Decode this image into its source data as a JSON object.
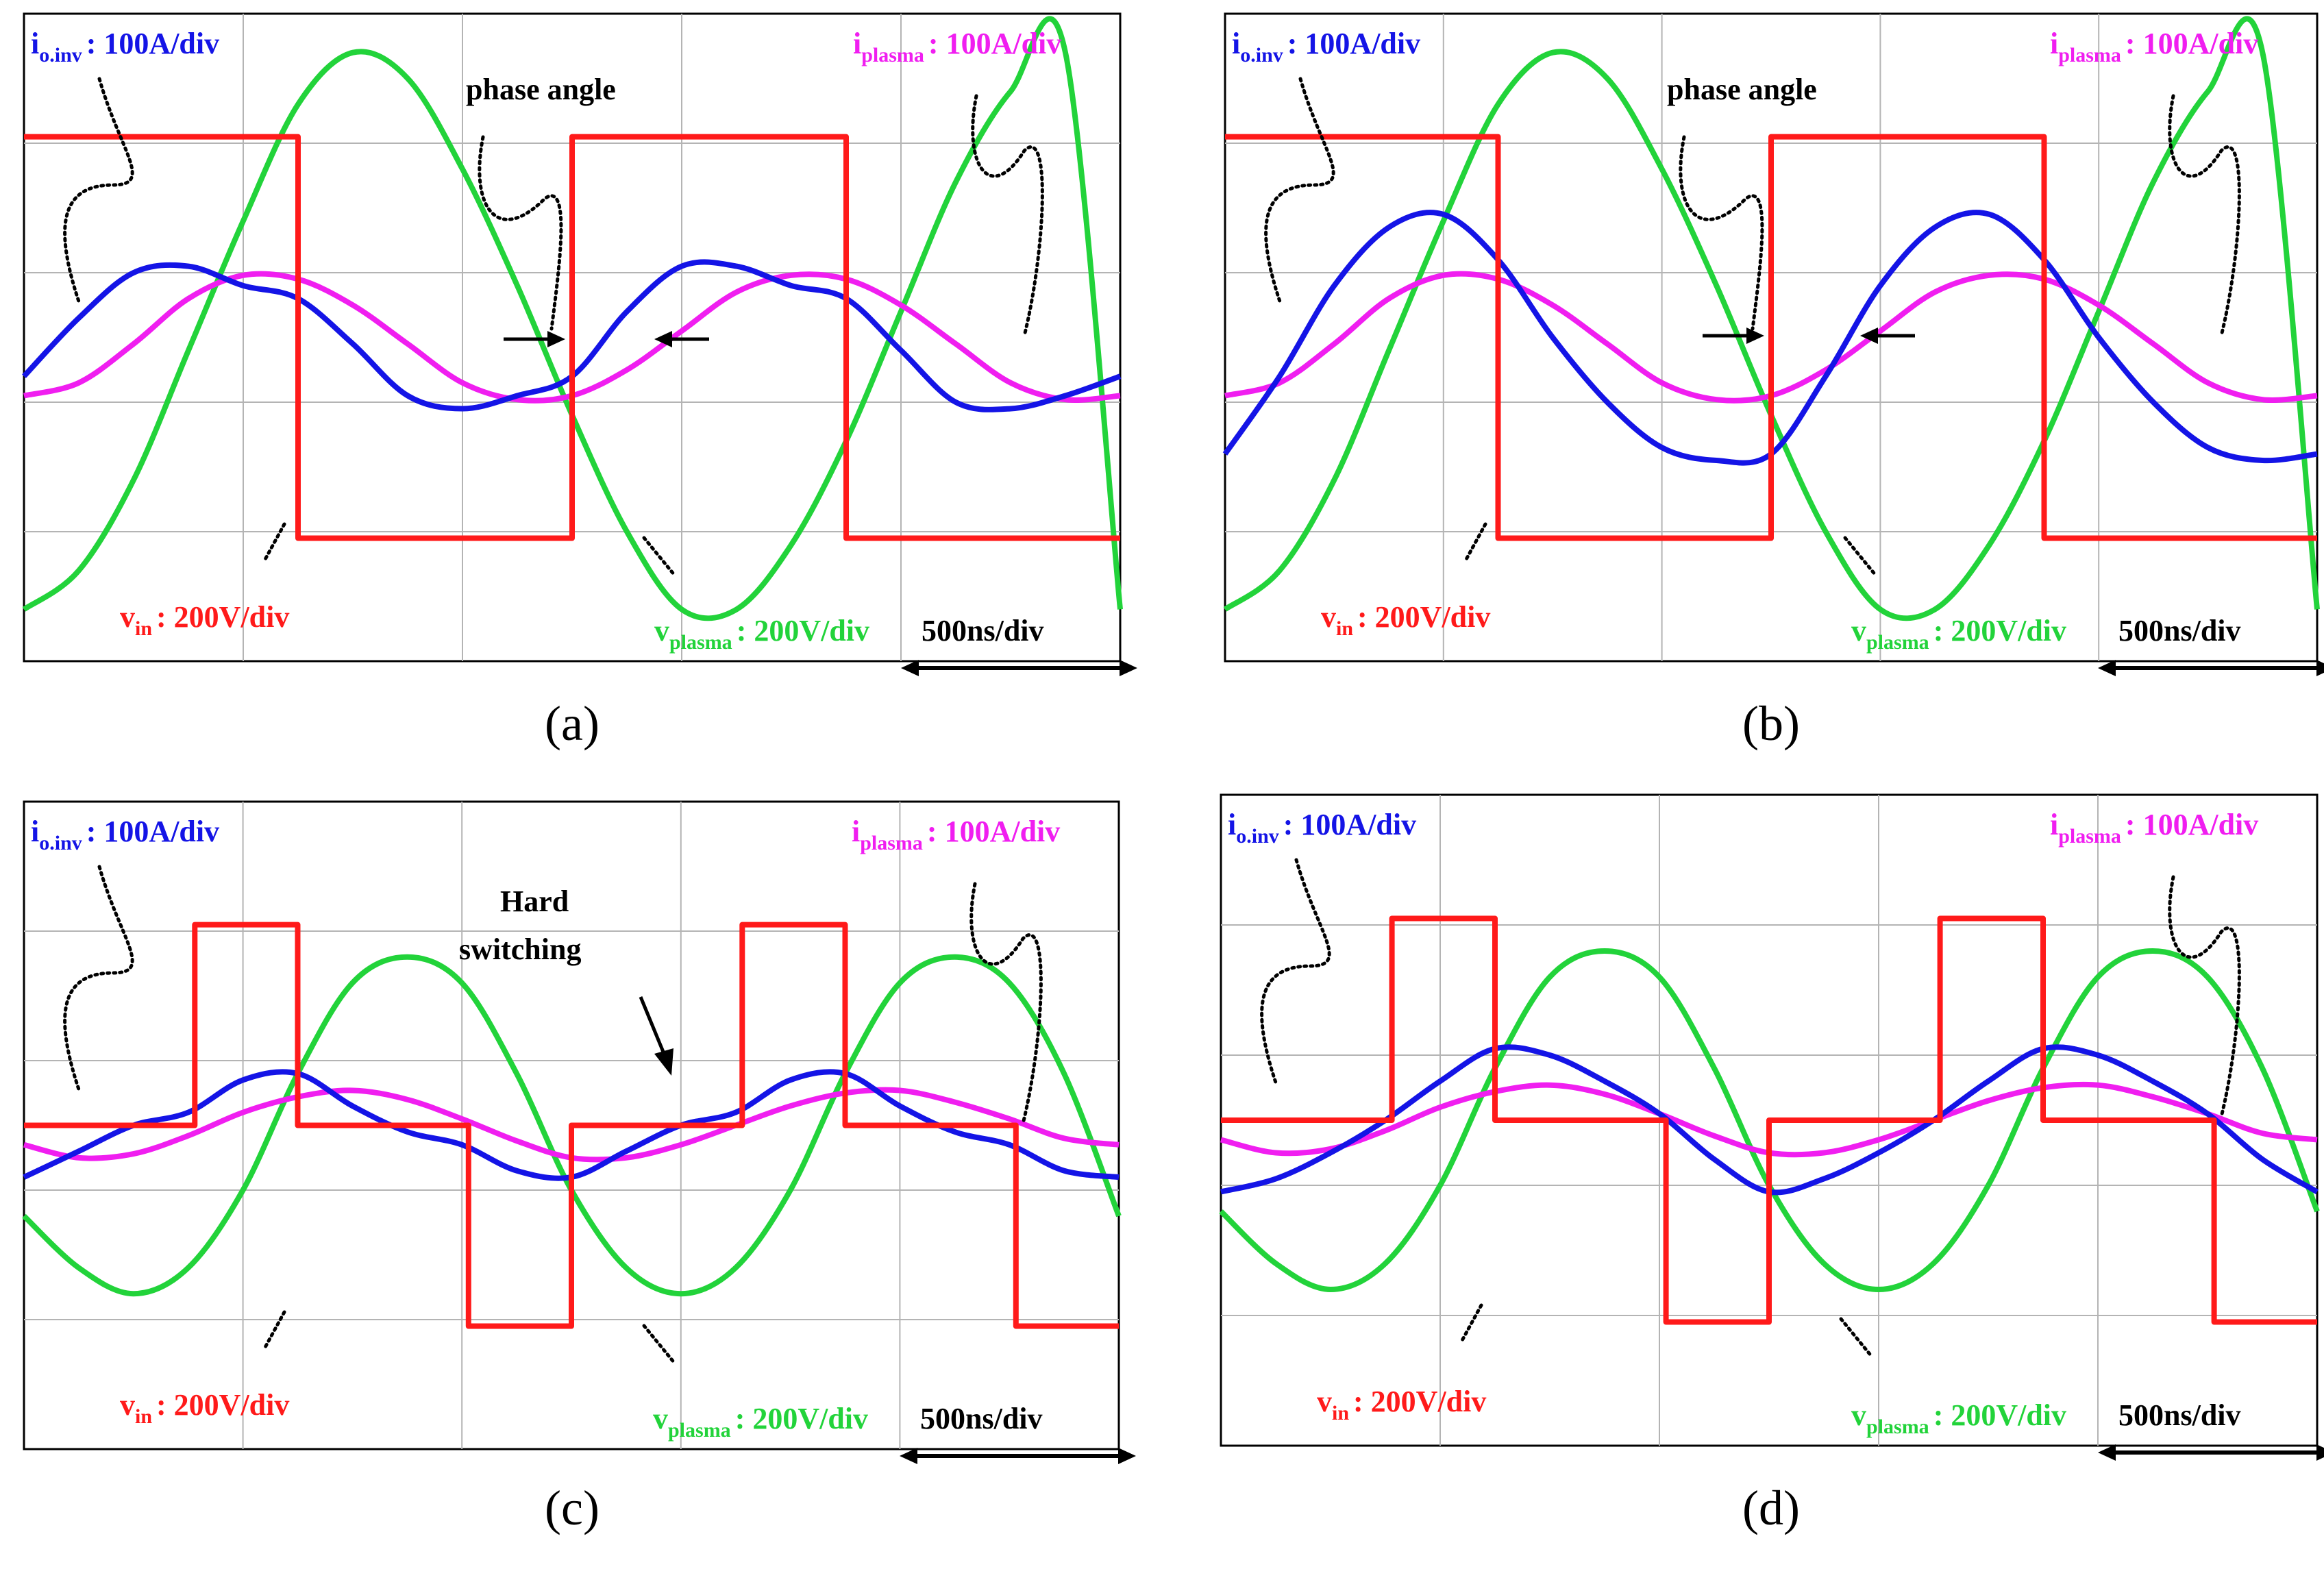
{
  "figure": {
    "description_free": true,
    "panels": [
      {
        "id": "a",
        "caption": "(a)",
        "labels": {
          "io_inv": {
            "main": "i",
            "sub": "o.inv",
            "scale": ": 100A/div"
          },
          "i_plasma": {
            "main": "i",
            "sub": "plasma",
            "scale": ": 100A/div"
          },
          "v_in": {
            "main": "v",
            "sub": "in",
            "scale": ": 200V/div"
          },
          "v_plasma": {
            "main": "v",
            "sub": "plasma",
            "scale": ": 200V/div"
          },
          "time_scale": "500ns/div"
        },
        "annotation": {
          "text1": "phase angle",
          "text2": ""
        }
      },
      {
        "id": "b",
        "caption": "(b)",
        "labels": {
          "io_inv": {
            "main": "i",
            "sub": "o.inv",
            "scale": ": 100A/div"
          },
          "i_plasma": {
            "main": "i",
            "sub": "plasma",
            "scale": ": 100A/div"
          },
          "v_in": {
            "main": "v",
            "sub": "in",
            "scale": ": 200V/div"
          },
          "v_plasma": {
            "main": "v",
            "sub": "plasma",
            "scale": ": 200V/div"
          },
          "time_scale": "500ns/div"
        },
        "annotation": {
          "text1": "phase angle",
          "text2": ""
        }
      },
      {
        "id": "c",
        "caption": "(c)",
        "labels": {
          "io_inv": {
            "main": "i",
            "sub": "o.inv",
            "scale": ": 100A/div"
          },
          "i_plasma": {
            "main": "i",
            "sub": "plasma",
            "scale": ": 100A/div"
          },
          "v_in": {
            "main": "v",
            "sub": "in",
            "scale": ": 200V/div"
          },
          "v_plasma": {
            "main": "v",
            "sub": "plasma",
            "scale": ": 200V/div"
          },
          "time_scale": "500ns/div"
        },
        "annotation": {
          "text1": "Hard",
          "text2": "switching"
        }
      },
      {
        "id": "d",
        "caption": "(d)",
        "labels": {
          "io_inv": {
            "main": "i",
            "sub": "o.inv",
            "scale": ": 100A/div"
          },
          "i_plasma": {
            "main": "i",
            "sub": "plasma",
            "scale": ": 100A/div"
          },
          "v_in": {
            "main": "v",
            "sub": "in",
            "scale": ": 200V/div"
          },
          "v_plasma": {
            "main": "v",
            "sub": "plasma",
            "scale": ": 200V/div"
          },
          "time_scale": "500ns/div"
        },
        "annotation": {
          "text1": "",
          "text2": ""
        }
      }
    ]
  },
  "colors": {
    "v_in": "#ff1a1a",
    "v_plasma": "#22d33a",
    "io_inv": "#1414e6",
    "i_plasma": "#f01ef0",
    "grid": "#b4b4b4",
    "frame": "#000000",
    "label_black": "#000000"
  },
  "chart_data": [
    {
      "type": "line",
      "panel": "a",
      "title": "",
      "xlabel": "time (500ns/div)",
      "ylabel": "",
      "x_divisions": 5,
      "y_divisions": 5,
      "xlim": [
        0,
        5
      ],
      "ylim": [
        -2.5,
        2.5
      ],
      "series": [
        {
          "name": "v_in",
          "unit": "200V/div",
          "x": [
            0.0,
            1.25,
            1.25,
            2.5,
            2.5,
            3.75,
            3.75,
            5.0
          ],
          "y": [
            1.55,
            1.55,
            -1.55,
            -1.55,
            1.55,
            1.55,
            -1.55,
            -1.55
          ]
        },
        {
          "name": "v_plasma",
          "unit": "200V/div",
          "x": [
            0.0,
            0.25,
            0.5,
            0.75,
            1.0,
            1.25,
            1.5,
            1.75,
            2.0,
            2.25,
            2.5,
            2.75,
            3.0,
            3.25,
            3.5,
            3.75,
            4.0,
            4.25,
            4.5,
            4.75,
            5.0
          ],
          "y": [
            -2.1,
            -1.8,
            -1.1,
            -0.1,
            0.9,
            1.8,
            2.2,
            2.0,
            1.3,
            0.4,
            -0.6,
            -1.5,
            -2.1,
            -2.1,
            -1.6,
            -0.8,
            0.2,
            1.2,
            1.9,
            2.2,
            -2.1
          ]
        },
        {
          "name": "io_inv",
          "unit": "100A/div",
          "x": [
            0.0,
            0.25,
            0.5,
            0.75,
            1.0,
            1.25,
            1.5,
            1.75,
            2.0,
            2.25,
            2.5,
            2.75,
            3.0,
            3.25,
            3.5,
            3.75,
            4.0,
            4.25,
            4.5,
            4.75,
            5.0
          ],
          "y": [
            -0.3,
            0.15,
            0.5,
            0.55,
            0.4,
            0.3,
            -0.05,
            -0.45,
            -0.55,
            -0.45,
            -0.3,
            0.2,
            0.55,
            0.55,
            0.4,
            0.3,
            -0.1,
            -0.5,
            -0.55,
            -0.45,
            -0.3
          ]
        },
        {
          "name": "i_plasma",
          "unit": "100A/div",
          "x": [
            0.0,
            0.25,
            0.5,
            0.75,
            1.0,
            1.25,
            1.5,
            1.75,
            2.0,
            2.25,
            2.5,
            2.75,
            3.0,
            3.25,
            3.5,
            3.75,
            4.0,
            4.25,
            4.5,
            4.75,
            5.0
          ],
          "y": [
            -0.45,
            -0.35,
            -0.05,
            0.3,
            0.48,
            0.45,
            0.25,
            -0.05,
            -0.35,
            -0.48,
            -0.45,
            -0.25,
            0.05,
            0.35,
            0.48,
            0.45,
            0.25,
            -0.05,
            -0.35,
            -0.48,
            -0.45
          ]
        }
      ]
    },
    {
      "type": "line",
      "panel": "b",
      "title": "",
      "xlabel": "time (500ns/div)",
      "ylabel": "",
      "x_divisions": 5,
      "y_divisions": 5,
      "xlim": [
        0,
        5
      ],
      "ylim": [
        -2.5,
        2.5
      ],
      "series": [
        {
          "name": "v_in",
          "unit": "200V/div",
          "x": [
            0.0,
            1.25,
            1.25,
            2.5,
            2.5,
            3.75,
            3.75,
            5.0
          ],
          "y": [
            1.55,
            1.55,
            -1.55,
            -1.55,
            1.55,
            1.55,
            -1.55,
            -1.55
          ]
        },
        {
          "name": "v_plasma",
          "unit": "200V/div",
          "x": [
            0.0,
            0.25,
            0.5,
            0.75,
            1.0,
            1.25,
            1.5,
            1.75,
            2.0,
            2.25,
            2.5,
            2.75,
            3.0,
            3.25,
            3.5,
            3.75,
            4.0,
            4.25,
            4.5,
            4.75,
            5.0
          ],
          "y": [
            -2.1,
            -1.8,
            -1.1,
            -0.1,
            0.9,
            1.8,
            2.2,
            2.0,
            1.3,
            0.4,
            -0.6,
            -1.5,
            -2.1,
            -2.1,
            -1.6,
            -0.8,
            0.2,
            1.2,
            1.9,
            2.2,
            -2.1
          ]
        },
        {
          "name": "io_inv",
          "unit": "100A/div",
          "x": [
            0.0,
            0.25,
            0.5,
            0.75,
            1.0,
            1.25,
            1.5,
            1.75,
            2.0,
            2.25,
            2.5,
            2.75,
            3.0,
            3.25,
            3.5,
            3.75,
            4.0,
            4.25,
            4.5,
            4.75,
            5.0
          ],
          "y": [
            -0.9,
            -0.3,
            0.4,
            0.85,
            0.95,
            0.6,
            0.0,
            -0.5,
            -0.85,
            -0.95,
            -0.9,
            -0.3,
            0.4,
            0.85,
            0.95,
            0.6,
            0.0,
            -0.5,
            -0.85,
            -0.95,
            -0.9
          ]
        },
        {
          "name": "i_plasma",
          "unit": "100A/div",
          "x": [
            0.0,
            0.25,
            0.5,
            0.75,
            1.0,
            1.25,
            1.5,
            1.75,
            2.0,
            2.25,
            2.5,
            2.75,
            3.0,
            3.25,
            3.5,
            3.75,
            4.0,
            4.25,
            4.5,
            4.75,
            5.0
          ],
          "y": [
            -0.45,
            -0.35,
            -0.05,
            0.3,
            0.48,
            0.45,
            0.25,
            -0.05,
            -0.35,
            -0.48,
            -0.45,
            -0.25,
            0.05,
            0.35,
            0.48,
            0.45,
            0.25,
            -0.05,
            -0.35,
            -0.48,
            -0.45
          ]
        }
      ]
    },
    {
      "type": "line",
      "panel": "c",
      "title": "",
      "xlabel": "time (500ns/div)",
      "ylabel": "",
      "x_divisions": 5,
      "y_divisions": 5,
      "xlim": [
        0,
        5
      ],
      "ylim": [
        -2.5,
        2.5
      ],
      "series": [
        {
          "name": "v_in",
          "unit": "200V/div",
          "x": [
            0.0,
            0.78,
            0.78,
            1.25,
            1.25,
            2.03,
            2.03,
            2.5,
            2.5,
            3.28,
            3.28,
            3.75,
            3.75,
            4.53,
            4.53,
            5.0
          ],
          "y": [
            0.0,
            0.0,
            1.55,
            1.55,
            0.0,
            0.0,
            -1.55,
            -1.55,
            0.0,
            0.0,
            1.55,
            1.55,
            0.0,
            0.0,
            -1.55,
            -1.55
          ]
        },
        {
          "name": "v_plasma",
          "unit": "200V/div",
          "x": [
            0.0,
            0.25,
            0.5,
            0.75,
            1.0,
            1.25,
            1.5,
            1.75,
            2.0,
            2.25,
            2.5,
            2.75,
            3.0,
            3.25,
            3.5,
            3.75,
            4.0,
            4.25,
            4.5,
            4.75,
            5.0
          ],
          "y": [
            -0.7,
            -1.1,
            -1.3,
            -1.1,
            -0.5,
            0.4,
            1.1,
            1.3,
            1.1,
            0.4,
            -0.5,
            -1.1,
            -1.3,
            -1.1,
            -0.5,
            0.4,
            1.1,
            1.3,
            1.1,
            0.4,
            -0.7
          ]
        },
        {
          "name": "io_inv",
          "unit": "100A/div",
          "x": [
            0.0,
            0.25,
            0.5,
            0.75,
            1.0,
            1.25,
            1.5,
            1.75,
            2.0,
            2.25,
            2.5,
            2.75,
            3.0,
            3.25,
            3.5,
            3.75,
            4.0,
            4.25,
            4.5,
            4.75,
            5.0
          ],
          "y": [
            -0.4,
            -0.2,
            0.0,
            0.1,
            0.35,
            0.4,
            0.15,
            -0.05,
            -0.15,
            -0.35,
            -0.4,
            -0.2,
            0.0,
            0.1,
            0.35,
            0.4,
            0.15,
            -0.05,
            -0.15,
            -0.35,
            -0.4
          ]
        },
        {
          "name": "i_plasma",
          "unit": "100A/div",
          "x": [
            0.0,
            0.25,
            0.5,
            0.75,
            1.0,
            1.25,
            1.5,
            1.75,
            2.0,
            2.25,
            2.5,
            2.75,
            3.0,
            3.25,
            3.5,
            3.75,
            4.0,
            4.25,
            4.5,
            4.75,
            5.0
          ],
          "y": [
            -0.15,
            -0.25,
            -0.22,
            -0.08,
            0.1,
            0.22,
            0.27,
            0.2,
            0.05,
            -0.12,
            -0.25,
            -0.25,
            -0.15,
            0.0,
            0.15,
            0.25,
            0.27,
            0.18,
            0.05,
            -0.1,
            -0.15
          ]
        }
      ]
    },
    {
      "type": "line",
      "panel": "d",
      "title": "",
      "xlabel": "time (500ns/div)",
      "ylabel": "",
      "x_divisions": 5,
      "y_divisions": 5,
      "xlim": [
        0,
        5
      ],
      "ylim": [
        -2.5,
        2.5
      ],
      "series": [
        {
          "name": "v_in",
          "unit": "200V/div",
          "x": [
            0.0,
            0.78,
            0.78,
            1.25,
            1.25,
            2.03,
            2.03,
            2.5,
            2.5,
            3.28,
            3.28,
            3.75,
            3.75,
            4.53,
            4.53,
            5.0
          ],
          "y": [
            0.0,
            0.0,
            1.55,
            1.55,
            0.0,
            0.0,
            -1.55,
            -1.55,
            0.0,
            0.0,
            1.55,
            1.55,
            0.0,
            0.0,
            -1.55,
            -1.55
          ]
        },
        {
          "name": "v_plasma",
          "unit": "200V/div",
          "x": [
            0.0,
            0.25,
            0.5,
            0.75,
            1.0,
            1.25,
            1.5,
            1.75,
            2.0,
            2.25,
            2.5,
            2.75,
            3.0,
            3.25,
            3.5,
            3.75,
            4.0,
            4.25,
            4.5,
            4.75,
            5.0
          ],
          "y": [
            -0.7,
            -1.1,
            -1.3,
            -1.1,
            -0.5,
            0.4,
            1.1,
            1.3,
            1.1,
            0.4,
            -0.5,
            -1.1,
            -1.3,
            -1.1,
            -0.5,
            0.4,
            1.1,
            1.3,
            1.1,
            0.4,
            -0.7
          ]
        },
        {
          "name": "io_inv",
          "unit": "100A/div",
          "x": [
            0.0,
            0.25,
            0.5,
            0.75,
            1.0,
            1.25,
            1.5,
            1.75,
            2.0,
            2.25,
            2.5,
            2.75,
            3.0,
            3.25,
            3.5,
            3.75,
            4.0,
            4.25,
            4.5,
            4.75,
            5.0
          ],
          "y": [
            -0.55,
            -0.45,
            -0.25,
            0.0,
            0.3,
            0.55,
            0.5,
            0.3,
            0.05,
            -0.3,
            -0.55,
            -0.45,
            -0.25,
            0.0,
            0.3,
            0.55,
            0.5,
            0.3,
            0.05,
            -0.3,
            -0.55
          ]
        },
        {
          "name": "i_plasma",
          "unit": "100A/div",
          "x": [
            0.0,
            0.25,
            0.5,
            0.75,
            1.0,
            1.25,
            1.5,
            1.75,
            2.0,
            2.25,
            2.5,
            2.75,
            3.0,
            3.25,
            3.5,
            3.75,
            4.0,
            4.25,
            4.5,
            4.75,
            5.0
          ],
          "y": [
            -0.15,
            -0.25,
            -0.22,
            -0.08,
            0.1,
            0.22,
            0.27,
            0.2,
            0.05,
            -0.12,
            -0.25,
            -0.25,
            -0.15,
            0.0,
            0.15,
            0.25,
            0.27,
            0.18,
            0.05,
            -0.1,
            -0.15
          ]
        }
      ]
    }
  ]
}
